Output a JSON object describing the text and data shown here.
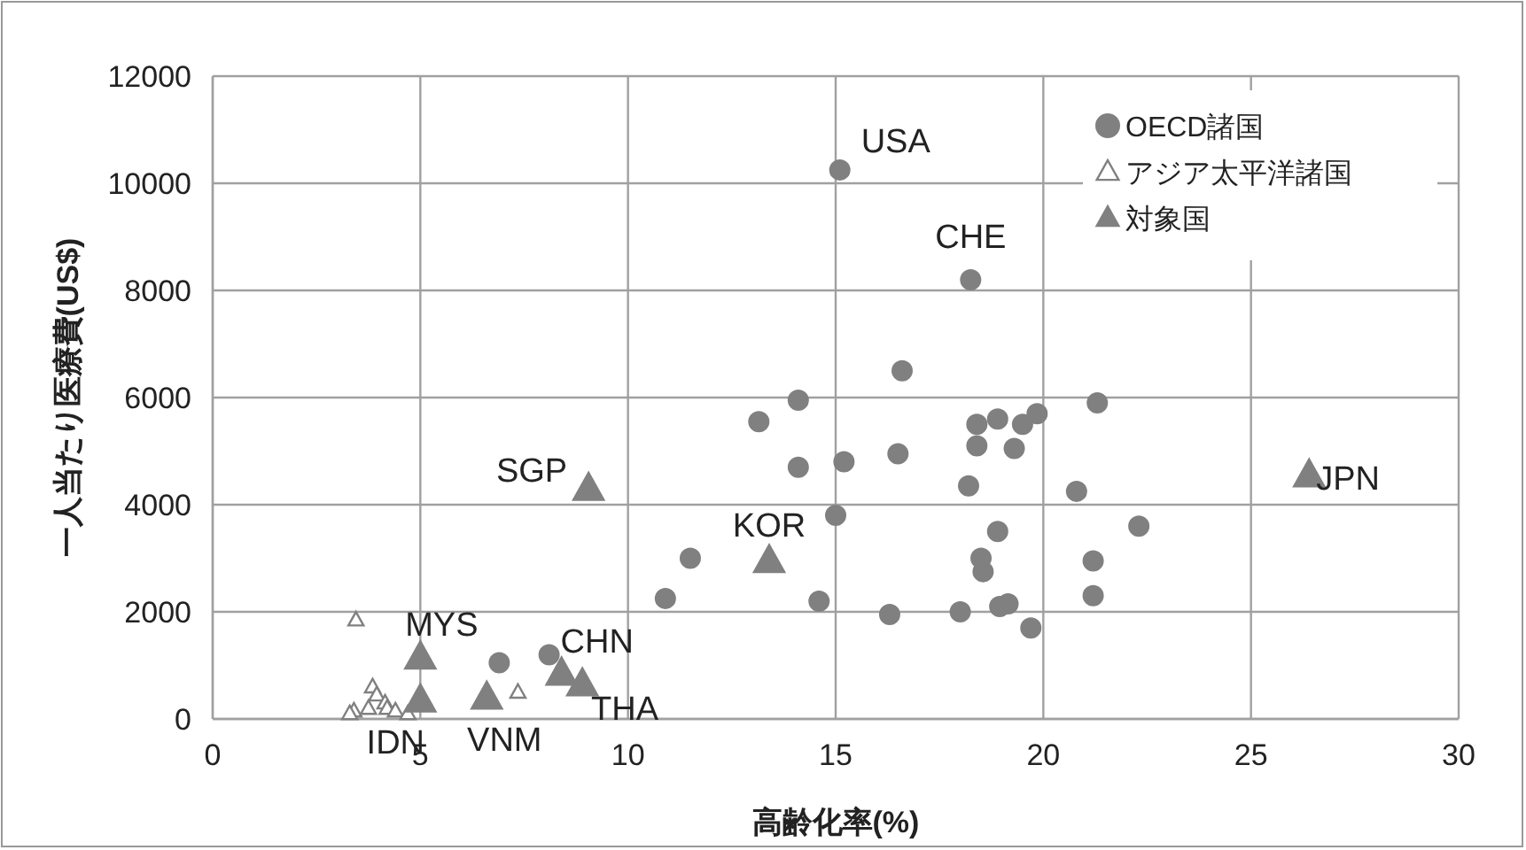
{
  "chart_data": {
    "type": "scatter",
    "xlabel": "高齢化率(%)",
    "ylabel": "一人当たり医療費(US$)",
    "xlim": [
      0,
      30
    ],
    "xticks": [
      0,
      5,
      10,
      15,
      20,
      25,
      30
    ],
    "ylim": [
      0,
      12000
    ],
    "yticks": [
      0,
      2000,
      4000,
      6000,
      8000,
      10000,
      12000
    ],
    "grid": true,
    "legend": "top right",
    "series": [
      {
        "name": "OECD諸国",
        "color": "#808080",
        "marker": "circle",
        "x": [
          15.1,
          18.25,
          16.6,
          14.1,
          13.15,
          14.1,
          15.2,
          16.5,
          18.4,
          18.9,
          19.5,
          19.85,
          21.3,
          18.4,
          19.3,
          18.2,
          20.8,
          15.0,
          22.3,
          18.9,
          21.2,
          21.2,
          18.5,
          18.55,
          11.5,
          10.9,
          14.6,
          16.3,
          18.0,
          18.95,
          19.15,
          19.7,
          6.9,
          8.1
        ],
        "values": [
          10250,
          8200,
          6500,
          5950,
          5550,
          4700,
          4800,
          4950,
          5500,
          5600,
          5500,
          5700,
          5900,
          5100,
          5050,
          4350,
          4250,
          3800,
          3600,
          3500,
          2950,
          2300,
          3000,
          2750,
          3000,
          2250,
          2200,
          1950,
          2000,
          2100,
          2150,
          1700,
          1050,
          1200
        ]
      },
      {
        "name": "アジア太平洋諸国",
        "color": "#808080",
        "marker": "triangle",
        "x": [
          3.45,
          3.85,
          3.4,
          3.3,
          3.75,
          3.95,
          4.15,
          4.2,
          4.4,
          4.7,
          7.35
        ],
        "values": [
          1850,
          600,
          150,
          100,
          200,
          450,
          300,
          200,
          150,
          100,
          500
        ]
      },
      {
        "name": "対象国",
        "color": "#808080",
        "marker": "triangle",
        "x": [
          9.05,
          13.4,
          26.4,
          5.0,
          5.0,
          6.6,
          8.4,
          8.9
        ],
        "values": [
          4300,
          2950,
          4550,
          1150,
          350,
          400,
          850,
          650
        ]
      }
    ],
    "annotations": [
      {
        "text": "USA",
        "x": 15.1,
        "y": 10250
      },
      {
        "text": "CHE",
        "x": 18.25,
        "y": 8200
      },
      {
        "text": "SGP",
        "x": 9.05,
        "y": 4300
      },
      {
        "text": "KOR",
        "x": 13.4,
        "y": 2950
      },
      {
        "text": "JPN",
        "x": 26.4,
        "y": 4550
      },
      {
        "text": "MYS",
        "x": 5.0,
        "y": 1150
      },
      {
        "text": "IDN",
        "x": 5.0,
        "y": 350
      },
      {
        "text": "VNM",
        "x": 6.6,
        "y": 400
      },
      {
        "text": "CHN",
        "x": 8.4,
        "y": 850
      },
      {
        "text": "THA",
        "x": 8.9,
        "y": 650
      }
    ]
  }
}
